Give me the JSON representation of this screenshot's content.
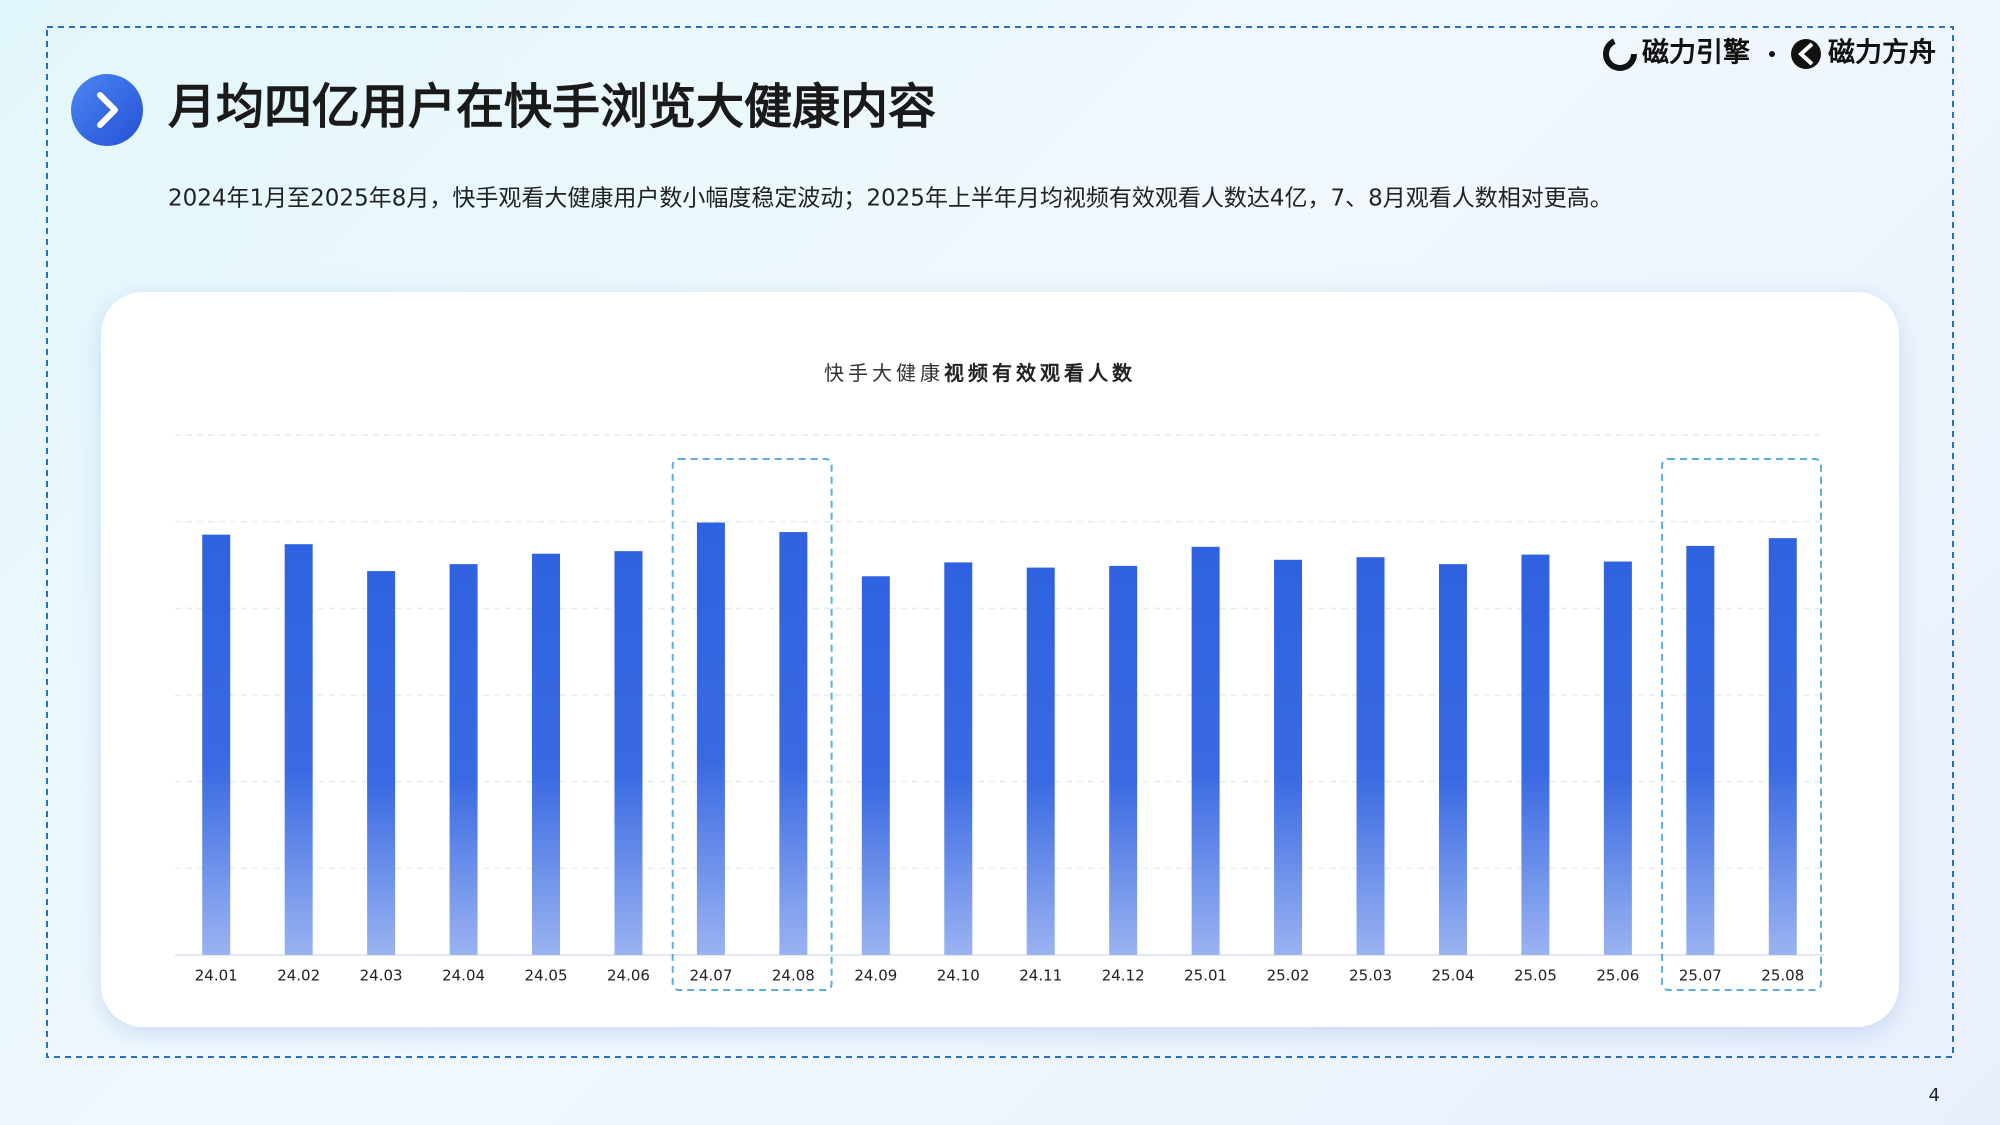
{
  "header": {
    "title": "月均四亿用户在快手浏览大健康内容",
    "subtitle": "2024年1月至2025年8月，快手观看大健康用户数小幅度稳定波动；2025年上半年月均视频有效观看人数达4亿，7、8月观看人数相对更高。",
    "logos": [
      "磁力引擎",
      "磁力方舟"
    ],
    "page_number": "4"
  },
  "chart_data": {
    "type": "bar",
    "title": [
      "快手大健康",
      "视频有效观看人数"
    ],
    "categories": [
      "24.01",
      "24.02",
      "24.03",
      "24.04",
      "24.05",
      "24.06",
      "24.07",
      "24.08",
      "24.09",
      "24.10",
      "24.11",
      "24.12",
      "25.01",
      "25.02",
      "25.03",
      "25.04",
      "25.05",
      "25.06",
      "25.07",
      "25.08"
    ],
    "values": [
      4.85,
      4.74,
      4.43,
      4.51,
      4.63,
      4.66,
      4.99,
      4.88,
      4.37,
      4.53,
      4.47,
      4.49,
      4.71,
      4.56,
      4.59,
      4.51,
      4.62,
      4.54,
      4.72,
      4.81
    ],
    "color": "#2f62e0",
    "ylim": [
      0,
      6
    ],
    "yticks": [
      0,
      1,
      2,
      3,
      4,
      5,
      6
    ],
    "grid": true,
    "highlight_ranges": [
      [
        6,
        7
      ],
      [
        18,
        19
      ]
    ]
  }
}
